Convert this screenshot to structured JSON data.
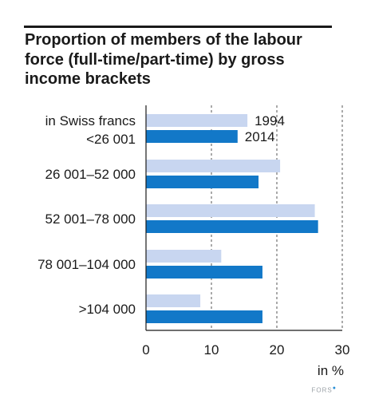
{
  "title": "Proportion of members of the labour force (full-time/part-time) by gross income brackets",
  "colors": {
    "series_1994": "#c8d6f0",
    "series_2014": "#1278c8",
    "axis": "#1a1a1a",
    "grid": "#555555"
  },
  "chart_data": {
    "type": "bar",
    "orientation": "horizontal",
    "categories_label": "in Swiss francs",
    "categories": [
      "<26 001",
      "26 001–52 000",
      "52 001–78 000",
      "78 001–104 000",
      ">104 000"
    ],
    "series": [
      {
        "name": "1994",
        "values": [
          15.5,
          20.5,
          25.8,
          11.5,
          8.3
        ]
      },
      {
        "name": "2014",
        "values": [
          14.0,
          17.2,
          26.3,
          17.8,
          17.8
        ]
      }
    ],
    "xlim": [
      0,
      30
    ],
    "xticks": [
      0,
      10,
      20,
      30
    ],
    "xlabel": "in %",
    "grid": "vertical dashed at 10, 20, 30",
    "legend": "inline, first category"
  },
  "watermark": "FORS"
}
